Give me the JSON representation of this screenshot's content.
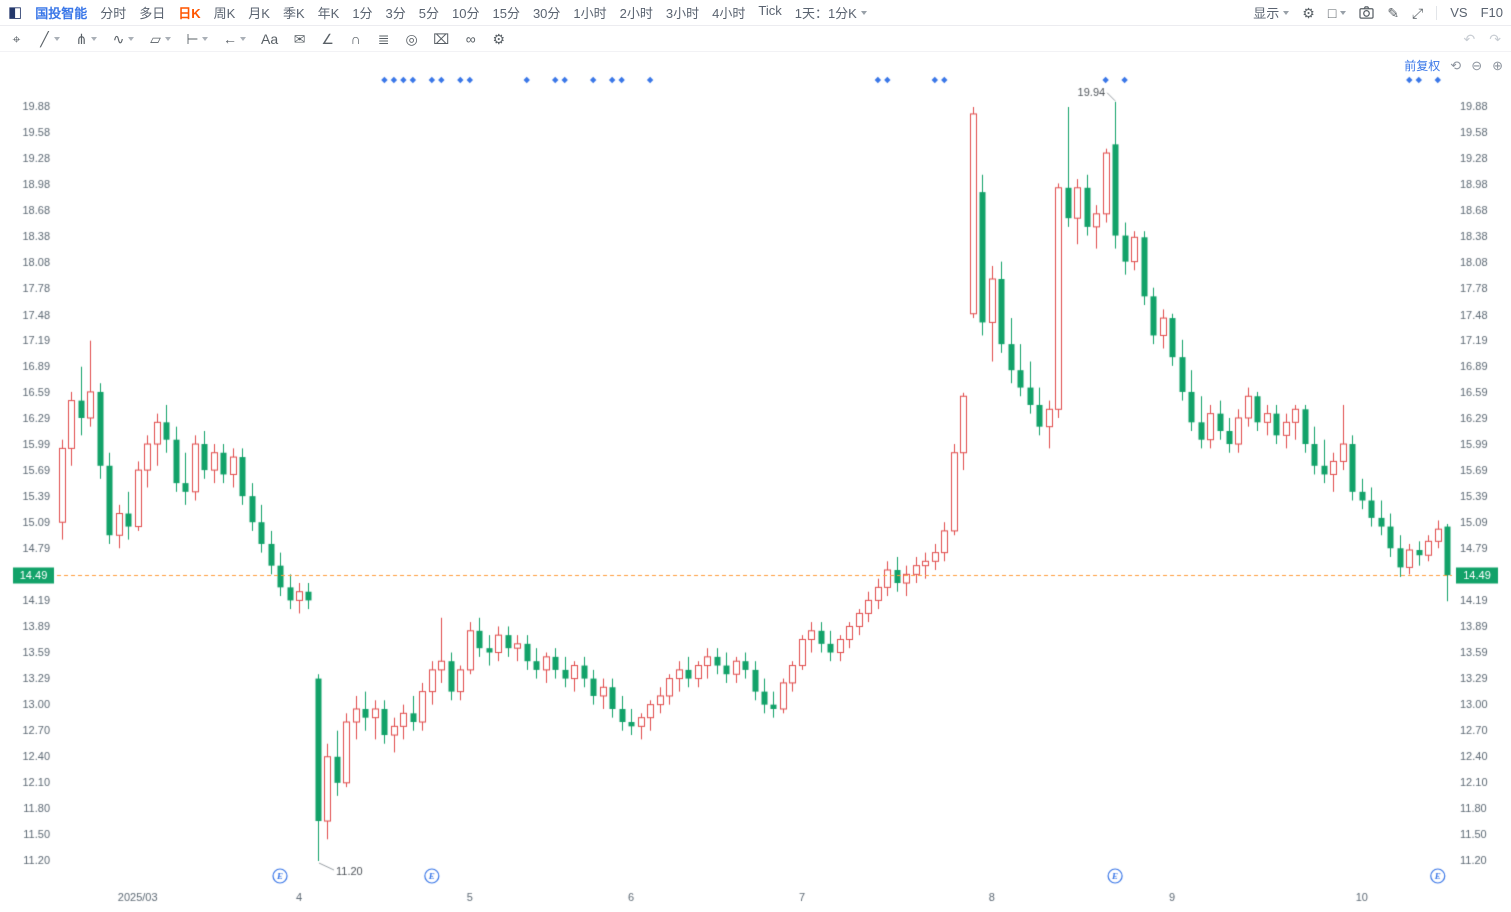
{
  "header": {
    "stock_name": "国投智能",
    "period_tabs": [
      "分时",
      "多日",
      "日K",
      "周K",
      "月K",
      "季K",
      "年K",
      "1分",
      "3分",
      "5分",
      "10分",
      "15分",
      "30分",
      "1小时",
      "2小时",
      "3小时",
      "4小时",
      "Tick"
    ],
    "active_tab": "日K",
    "multi_period_label": "1天：1分K",
    "display_label": "显示",
    "vs_label": "VS",
    "f10_label": "F10"
  },
  "header_icons": {
    "panel": "◧",
    "gear": "⚙",
    "layout": "□",
    "pen": "✎",
    "expand": "⤢"
  },
  "drawing_toolbar": {
    "tools": [
      {
        "name": "move-tool",
        "glyph": "⌖",
        "caret": false
      },
      {
        "name": "trendline-tool",
        "glyph": "╱",
        "caret": true
      },
      {
        "name": "pitchfork-tool",
        "glyph": "⋔",
        "caret": true
      },
      {
        "name": "wave-tool",
        "glyph": "∿",
        "caret": true
      },
      {
        "name": "pattern-tool",
        "glyph": "▱",
        "caret": true
      },
      {
        "name": "measure-tool",
        "glyph": "⊢",
        "caret": true
      },
      {
        "name": "arrow-tool",
        "glyph": "←",
        "caret": true
      },
      {
        "name": "text-tool",
        "glyph": "Aa",
        "caret": false
      },
      {
        "name": "comment-tool",
        "glyph": "✉",
        "caret": false
      },
      {
        "name": "angle-tool",
        "glyph": "∠",
        "caret": false
      },
      {
        "name": "magnet-tool",
        "glyph": "∩",
        "caret": false
      },
      {
        "name": "layers-tool",
        "glyph": "≣",
        "caret": false
      },
      {
        "name": "target-tool",
        "glyph": "◎",
        "caret": false
      },
      {
        "name": "delete-tool",
        "glyph": "⌧",
        "caret": false
      },
      {
        "name": "compare-tool",
        "glyph": "∞",
        "caret": false
      },
      {
        "name": "tool-settings",
        "glyph": "⚙",
        "caret": false
      }
    ],
    "undo_glyph": "↶",
    "redo_glyph": "↷"
  },
  "chart_overlay": {
    "adjust_label": "前复权",
    "reset_glyph": "⟲",
    "zoom_out_glyph": "⊖",
    "zoom_in_glyph": "⊕"
  },
  "chart_data": {
    "type": "candlestick",
    "symbol": "国投智能",
    "period": "日K",
    "adjustment": "前复权",
    "current_price": "14.49",
    "price_range": {
      "min": 11.2,
      "max": 19.94
    },
    "high_annotation": {
      "text": "19.94",
      "index": 111
    },
    "low_annotation": {
      "text": "11.20",
      "index": 27
    },
    "y_axis_ticks": [
      "19.88",
      "19.58",
      "19.28",
      "18.98",
      "18.68",
      "18.38",
      "18.08",
      "17.78",
      "17.48",
      "17.19",
      "16.89",
      "16.59",
      "16.29",
      "15.99",
      "15.69",
      "15.39",
      "15.09",
      "14.79",
      "14.49",
      "14.19",
      "13.89",
      "13.59",
      "13.29",
      "13.00",
      "12.70",
      "12.40",
      "12.10",
      "11.80",
      "11.50",
      "11.20"
    ],
    "x_axis_ticks": [
      {
        "label": "2025/03",
        "index": 8
      },
      {
        "label": "4",
        "index": 25
      },
      {
        "label": "5",
        "index": 43
      },
      {
        "label": "6",
        "index": 60
      },
      {
        "label": "7",
        "index": 78
      },
      {
        "label": "8",
        "index": 98
      },
      {
        "label": "9",
        "index": 117
      },
      {
        "label": "10",
        "index": 137
      }
    ],
    "candles_ohlc": [
      [
        15.1,
        16.05,
        14.9,
        15.95
      ],
      [
        15.95,
        16.6,
        15.75,
        16.5
      ],
      [
        16.5,
        16.89,
        16.1,
        16.3
      ],
      [
        16.3,
        17.19,
        16.2,
        16.6
      ],
      [
        16.6,
        16.7,
        15.6,
        15.75
      ],
      [
        15.75,
        15.9,
        14.85,
        14.95
      ],
      [
        14.95,
        15.3,
        14.8,
        15.2
      ],
      [
        15.2,
        15.45,
        14.9,
        15.05
      ],
      [
        15.05,
        15.8,
        15.0,
        15.7
      ],
      [
        15.7,
        16.1,
        15.5,
        16.0
      ],
      [
        16.0,
        16.35,
        15.75,
        16.25
      ],
      [
        16.25,
        16.45,
        15.9,
        16.05
      ],
      [
        16.05,
        16.2,
        15.45,
        15.55
      ],
      [
        15.55,
        15.9,
        15.3,
        15.45
      ],
      [
        15.45,
        16.1,
        15.35,
        16.0
      ],
      [
        16.0,
        16.15,
        15.6,
        15.7
      ],
      [
        15.7,
        16.0,
        15.55,
        15.9
      ],
      [
        15.9,
        16.0,
        15.55,
        15.65
      ],
      [
        15.65,
        15.95,
        15.5,
        15.85
      ],
      [
        15.85,
        15.95,
        15.3,
        15.4
      ],
      [
        15.4,
        15.55,
        15.0,
        15.1
      ],
      [
        15.1,
        15.3,
        14.75,
        14.85
      ],
      [
        14.85,
        15.0,
        14.5,
        14.6
      ],
      [
        14.6,
        14.75,
        14.25,
        14.35
      ],
      [
        14.35,
        14.5,
        14.1,
        14.2
      ],
      [
        14.2,
        14.4,
        14.05,
        14.3
      ],
      [
        14.3,
        14.4,
        14.1,
        14.2
      ],
      [
        13.3,
        13.35,
        11.2,
        11.66
      ],
      [
        11.66,
        12.55,
        11.45,
        12.4
      ],
      [
        12.4,
        12.7,
        11.95,
        12.1
      ],
      [
        12.1,
        12.9,
        12.05,
        12.8
      ],
      [
        12.8,
        13.1,
        12.6,
        12.95
      ],
      [
        12.95,
        13.15,
        12.7,
        12.85
      ],
      [
        12.85,
        13.05,
        12.6,
        12.95
      ],
      [
        12.95,
        13.05,
        12.55,
        12.65
      ],
      [
        12.65,
        12.85,
        12.45,
        12.75
      ],
      [
        12.75,
        13.0,
        12.6,
        12.9
      ],
      [
        12.9,
        13.1,
        12.7,
        12.8
      ],
      [
        12.8,
        13.25,
        12.7,
        13.15
      ],
      [
        13.15,
        13.5,
        13.0,
        13.4
      ],
      [
        13.4,
        14.0,
        13.25,
        13.5
      ],
      [
        13.5,
        13.6,
        13.05,
        13.15
      ],
      [
        13.15,
        13.45,
        13.05,
        13.4
      ],
      [
        13.4,
        13.95,
        13.35,
        13.85
      ],
      [
        13.85,
        14.0,
        13.55,
        13.65
      ],
      [
        13.65,
        13.8,
        13.45,
        13.6
      ],
      [
        13.6,
        13.9,
        13.5,
        13.8
      ],
      [
        13.8,
        13.9,
        13.55,
        13.65
      ],
      [
        13.65,
        13.8,
        13.5,
        13.7
      ],
      [
        13.7,
        13.8,
        13.4,
        13.5
      ],
      [
        13.5,
        13.65,
        13.3,
        13.4
      ],
      [
        13.4,
        13.6,
        13.25,
        13.55
      ],
      [
        13.55,
        13.65,
        13.3,
        13.4
      ],
      [
        13.4,
        13.55,
        13.2,
        13.3
      ],
      [
        13.3,
        13.5,
        13.15,
        13.45
      ],
      [
        13.45,
        13.55,
        13.2,
        13.3
      ],
      [
        13.3,
        13.4,
        13.0,
        13.1
      ],
      [
        13.1,
        13.3,
        12.95,
        13.2
      ],
      [
        13.2,
        13.3,
        12.85,
        12.95
      ],
      [
        12.95,
        13.1,
        12.7,
        12.8
      ],
      [
        12.8,
        12.95,
        12.65,
        12.75
      ],
      [
        12.75,
        12.9,
        12.6,
        12.85
      ],
      [
        12.85,
        13.05,
        12.7,
        13.0
      ],
      [
        13.0,
        13.2,
        12.9,
        13.1
      ],
      [
        13.1,
        13.35,
        13.0,
        13.3
      ],
      [
        13.3,
        13.5,
        13.15,
        13.4
      ],
      [
        13.4,
        13.55,
        13.2,
        13.3
      ],
      [
        13.3,
        13.5,
        13.2,
        13.45
      ],
      [
        13.45,
        13.65,
        13.3,
        13.55
      ],
      [
        13.55,
        13.65,
        13.35,
        13.45
      ],
      [
        13.45,
        13.6,
        13.25,
        13.35
      ],
      [
        13.35,
        13.55,
        13.25,
        13.5
      ],
      [
        13.5,
        13.6,
        13.3,
        13.4
      ],
      [
        13.4,
        13.5,
        13.05,
        13.15
      ],
      [
        13.15,
        13.3,
        12.9,
        13.0
      ],
      [
        13.0,
        13.15,
        12.85,
        12.95
      ],
      [
        12.95,
        13.3,
        12.9,
        13.25
      ],
      [
        13.25,
        13.5,
        13.15,
        13.45
      ],
      [
        13.45,
        13.8,
        13.4,
        13.75
      ],
      [
        13.75,
        13.95,
        13.6,
        13.85
      ],
      [
        13.85,
        13.95,
        13.6,
        13.7
      ],
      [
        13.7,
        13.85,
        13.5,
        13.6
      ],
      [
        13.6,
        13.8,
        13.5,
        13.75
      ],
      [
        13.75,
        13.95,
        13.65,
        13.9
      ],
      [
        13.9,
        14.1,
        13.8,
        14.05
      ],
      [
        14.05,
        14.3,
        13.95,
        14.2
      ],
      [
        14.2,
        14.45,
        14.1,
        14.35
      ],
      [
        14.35,
        14.65,
        14.25,
        14.55
      ],
      [
        14.55,
        14.7,
        14.3,
        14.4
      ],
      [
        14.4,
        14.6,
        14.25,
        14.5
      ],
      [
        14.5,
        14.7,
        14.4,
        14.6
      ],
      [
        14.6,
        14.75,
        14.45,
        14.65
      ],
      [
        14.65,
        14.85,
        14.55,
        14.75
      ],
      [
        14.75,
        15.1,
        14.65,
        15.0
      ],
      [
        15.0,
        16.0,
        14.95,
        15.9
      ],
      [
        15.9,
        16.59,
        15.7,
        16.55
      ],
      [
        17.5,
        19.88,
        17.45,
        19.8
      ],
      [
        18.9,
        19.1,
        17.25,
        17.4
      ],
      [
        17.4,
        18.05,
        16.95,
        17.9
      ],
      [
        17.9,
        18.1,
        17.05,
        17.15
      ],
      [
        17.15,
        17.45,
        16.7,
        16.85
      ],
      [
        16.85,
        17.15,
        16.55,
        16.65
      ],
      [
        16.65,
        16.95,
        16.35,
        16.45
      ],
      [
        16.45,
        16.65,
        16.1,
        16.2
      ],
      [
        16.2,
        16.5,
        15.95,
        16.4
      ],
      [
        16.4,
        19.0,
        16.3,
        18.95
      ],
      [
        18.95,
        19.88,
        18.5,
        18.6
      ],
      [
        18.6,
        19.05,
        18.3,
        18.95
      ],
      [
        18.95,
        19.1,
        18.4,
        18.5
      ],
      [
        18.5,
        18.75,
        18.25,
        18.65
      ],
      [
        18.65,
        19.4,
        18.55,
        19.35
      ],
      [
        19.45,
        19.94,
        18.25,
        18.4
      ],
      [
        18.4,
        18.55,
        17.95,
        18.1
      ],
      [
        18.1,
        18.45,
        18.0,
        18.38
      ],
      [
        18.38,
        18.45,
        17.6,
        17.7
      ],
      [
        17.7,
        17.8,
        17.15,
        17.25
      ],
      [
        17.25,
        17.55,
        17.1,
        17.45
      ],
      [
        17.45,
        17.5,
        16.9,
        17.0
      ],
      [
        17.0,
        17.2,
        16.5,
        16.6
      ],
      [
        16.6,
        16.85,
        16.15,
        16.25
      ],
      [
        16.25,
        16.55,
        15.95,
        16.05
      ],
      [
        16.05,
        16.45,
        15.95,
        16.35
      ],
      [
        16.35,
        16.5,
        16.05,
        16.15
      ],
      [
        16.15,
        16.3,
        15.9,
        16.0
      ],
      [
        16.0,
        16.4,
        15.9,
        16.3
      ],
      [
        16.3,
        16.65,
        16.2,
        16.55
      ],
      [
        16.55,
        16.6,
        16.15,
        16.25
      ],
      [
        16.25,
        16.45,
        16.1,
        16.35
      ],
      [
        16.35,
        16.45,
        16.0,
        16.1
      ],
      [
        16.1,
        16.35,
        15.95,
        16.25
      ],
      [
        16.25,
        16.45,
        16.05,
        16.4
      ],
      [
        16.4,
        16.45,
        15.9,
        16.0
      ],
      [
        16.0,
        16.2,
        15.65,
        15.75
      ],
      [
        15.75,
        16.05,
        15.55,
        15.65
      ],
      [
        15.65,
        15.9,
        15.45,
        15.8
      ],
      [
        15.8,
        16.45,
        15.7,
        16.0
      ],
      [
        16.0,
        16.1,
        15.35,
        15.45
      ],
      [
        15.45,
        15.6,
        15.25,
        15.35
      ],
      [
        15.35,
        15.5,
        15.05,
        15.15
      ],
      [
        15.15,
        15.35,
        14.95,
        15.05
      ],
      [
        15.05,
        15.2,
        14.7,
        14.8
      ],
      [
        14.8,
        14.95,
        14.47,
        14.58
      ],
      [
        14.58,
        14.85,
        14.5,
        14.78
      ],
      [
        14.78,
        14.88,
        14.6,
        14.72
      ],
      [
        14.72,
        14.95,
        14.65,
        14.88
      ],
      [
        14.88,
        15.12,
        14.8,
        15.02
      ],
      [
        15.05,
        15.08,
        14.19,
        14.49
      ]
    ],
    "event_dot_indices": [
      34,
      35,
      36,
      37,
      39,
      40,
      42,
      43,
      49,
      52,
      53,
      56,
      58,
      59,
      62,
      86,
      87,
      92,
      93,
      110,
      112,
      142,
      143,
      145
    ],
    "earnings_marker_indices": [
      23,
      39,
      111,
      145
    ],
    "earnings_glyph": "E",
    "colors": {
      "up": "#e14b4b",
      "down": "#12a269",
      "current_price_line": "#ff9d3c",
      "current_price_badge": "#12a269",
      "event_marker": "#3a77e8",
      "axis_text": "#5f6b76",
      "annotation_text": "#51565c"
    }
  }
}
